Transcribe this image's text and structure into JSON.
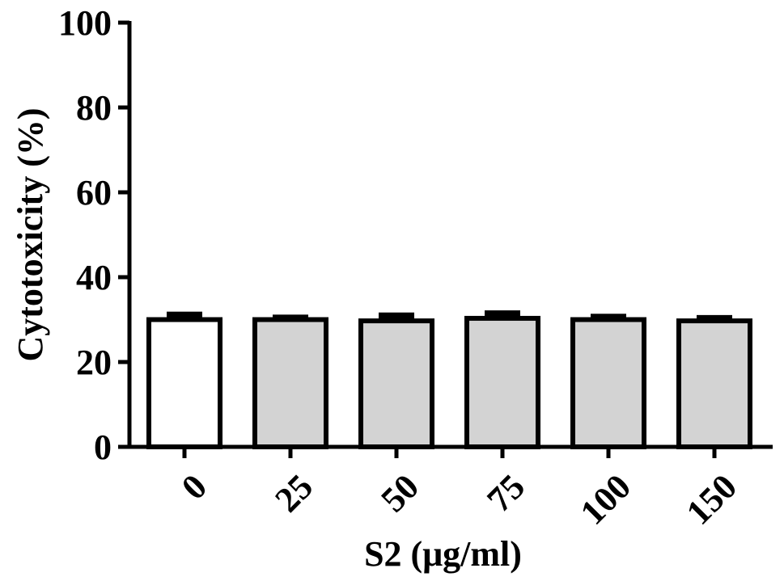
{
  "chart_data": {
    "type": "bar",
    "title": "",
    "xlabel": "S2 (μg/ml)",
    "ylabel": "Cytotoxicity (%)",
    "categories": [
      "0",
      "25",
      "50",
      "75",
      "100",
      "150"
    ],
    "values": [
      30.0,
      30.0,
      29.7,
      30.3,
      30.0,
      29.7
    ],
    "errors": [
      1.3,
      0.6,
      1.4,
      1.3,
      0.8,
      0.8
    ],
    "ylim": [
      0,
      100
    ],
    "yticks": [
      "0",
      "20",
      "40",
      "60",
      "80",
      "100"
    ],
    "bar_colors": [
      "#ffffff",
      "#d3d3d3",
      "#d3d3d3",
      "#d3d3d3",
      "#d3d3d3",
      "#d3d3d3"
    ],
    "edge_color": "#000000",
    "grid": false,
    "legend": "none"
  }
}
